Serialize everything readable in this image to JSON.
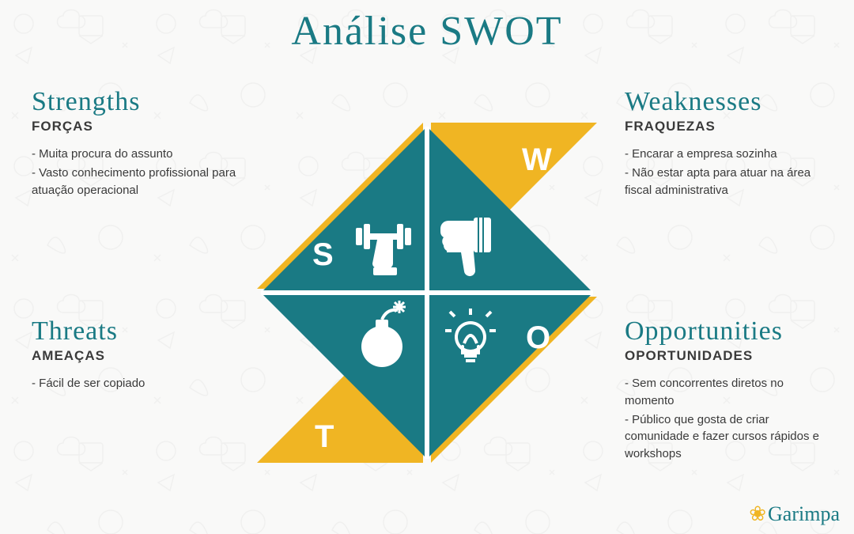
{
  "title": "Análise SWOT",
  "colors": {
    "teal": "#1a7a84",
    "yellow": "#f0b523",
    "white": "#ffffff",
    "text": "#3a3a3a",
    "bg": "#f9f9f8"
  },
  "diagram": {
    "size": 440,
    "letters": {
      "s": "S",
      "w": "W",
      "o": "O",
      "t": "T"
    },
    "letter_fontsize": 40,
    "letter_color": "#ffffff"
  },
  "quadrants": {
    "strengths": {
      "heading_en": "Strengths",
      "heading_pt": "FORÇAS",
      "items": [
        "- Muita procura do assunto",
        "- Vasto conhecimento profissional para atuação operacional"
      ]
    },
    "weaknesses": {
      "heading_en": "Weaknesses",
      "heading_pt": "FRAQUEZAS",
      "items": [
        "- Encarar a empresa sozinha",
        "- Não estar apta para atuar na área fiscal administrativa"
      ]
    },
    "threats": {
      "heading_en": "Threats",
      "heading_pt": "AMEAÇAS",
      "items": [
        "- Fácil de ser copiado"
      ]
    },
    "opportunities": {
      "heading_en": "Opportunities",
      "heading_pt": "OPORTUNIDADES",
      "items": [
        "- Sem concorrentes diretos no momento",
        "- Público que gosta de criar comunidade e fazer cursos rápidos e workshops"
      ]
    }
  },
  "logo_text": "Garimpa"
}
